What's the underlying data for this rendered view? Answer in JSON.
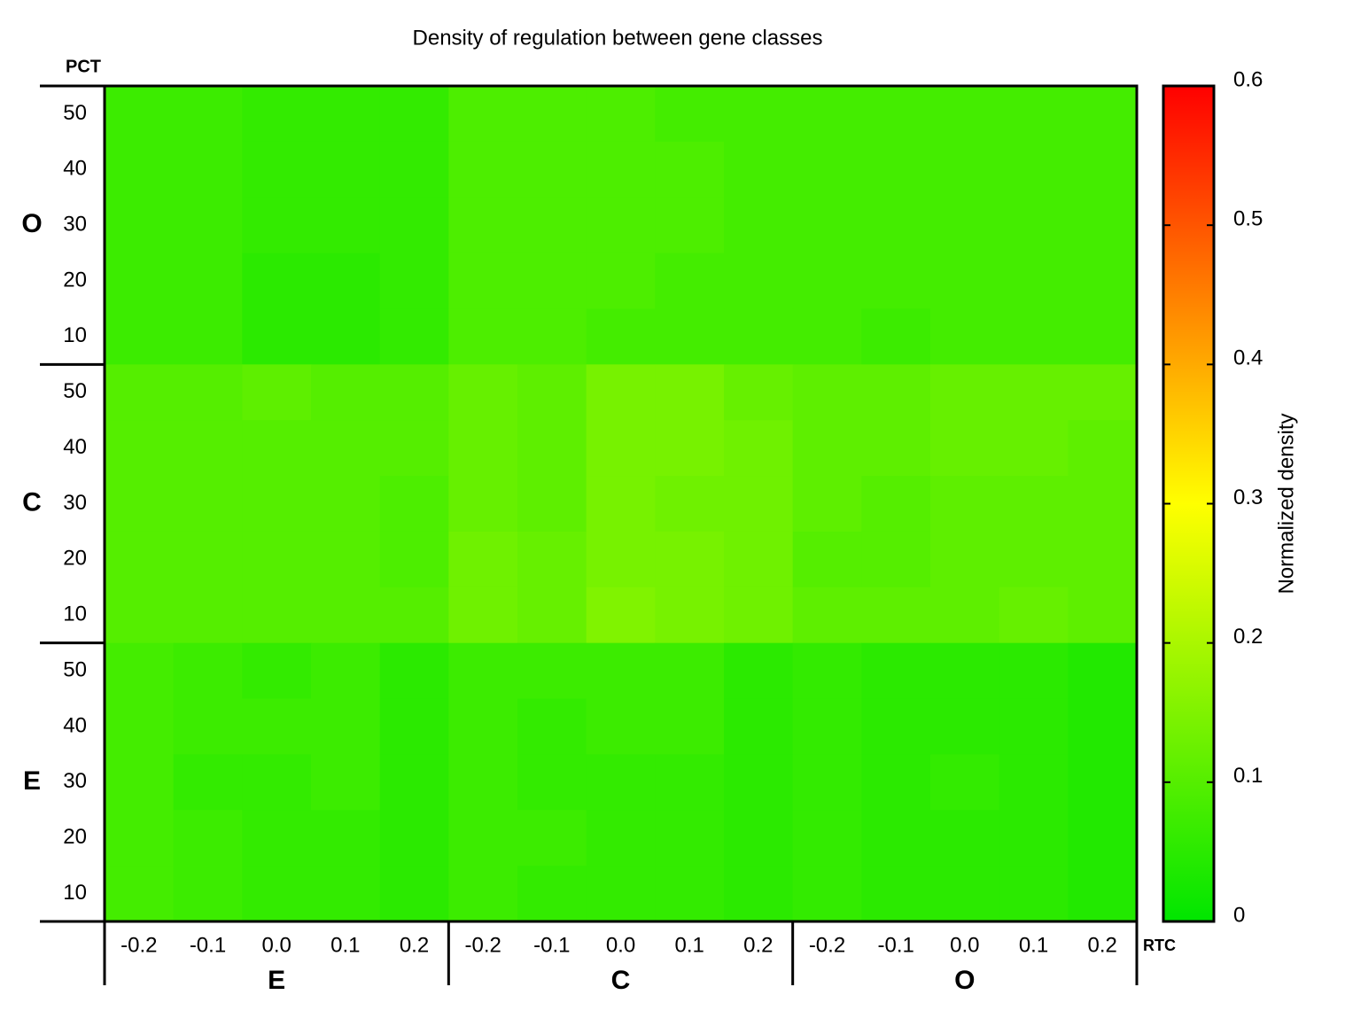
{
  "chart_data": {
    "type": "heatmap",
    "title": "Density of regulation between gene classes",
    "x_label": "RTC",
    "y_label": "PCT",
    "x_categories": [
      "-0.2",
      "-0.1",
      "0.0",
      "0.1",
      "0.2",
      "-0.2",
      "-0.1",
      "0.0",
      "0.1",
      "0.2",
      "-0.2",
      "-0.1",
      "0.0",
      "0.1",
      "0.2"
    ],
    "x_groups": [
      "E",
      "C",
      "O"
    ],
    "y_categories": [
      "50",
      "40",
      "30",
      "20",
      "10",
      "50",
      "40",
      "30",
      "20",
      "10",
      "50",
      "40",
      "30",
      "20",
      "10"
    ],
    "y_groups": [
      "O",
      "C",
      "E"
    ],
    "values": [
      [
        0.07,
        0.07,
        0.06,
        0.06,
        0.06,
        0.09,
        0.09,
        0.09,
        0.08,
        0.08,
        0.08,
        0.08,
        0.08,
        0.08,
        0.08
      ],
      [
        0.07,
        0.07,
        0.06,
        0.06,
        0.06,
        0.09,
        0.09,
        0.09,
        0.09,
        0.08,
        0.08,
        0.08,
        0.08,
        0.08,
        0.08
      ],
      [
        0.07,
        0.07,
        0.06,
        0.06,
        0.06,
        0.09,
        0.09,
        0.09,
        0.09,
        0.08,
        0.08,
        0.08,
        0.08,
        0.08,
        0.08
      ],
      [
        0.07,
        0.07,
        0.05,
        0.05,
        0.06,
        0.09,
        0.09,
        0.09,
        0.08,
        0.08,
        0.08,
        0.08,
        0.08,
        0.08,
        0.08
      ],
      [
        0.07,
        0.07,
        0.05,
        0.05,
        0.06,
        0.09,
        0.09,
        0.08,
        0.08,
        0.08,
        0.08,
        0.07,
        0.08,
        0.08,
        0.08
      ],
      [
        0.1,
        0.1,
        0.11,
        0.1,
        0.1,
        0.12,
        0.11,
        0.14,
        0.14,
        0.12,
        0.11,
        0.11,
        0.12,
        0.12,
        0.12
      ],
      [
        0.1,
        0.1,
        0.1,
        0.1,
        0.1,
        0.12,
        0.11,
        0.14,
        0.14,
        0.13,
        0.11,
        0.11,
        0.12,
        0.12,
        0.11
      ],
      [
        0.1,
        0.1,
        0.1,
        0.1,
        0.09,
        0.12,
        0.11,
        0.14,
        0.13,
        0.13,
        0.11,
        0.1,
        0.11,
        0.11,
        0.11
      ],
      [
        0.1,
        0.1,
        0.1,
        0.1,
        0.09,
        0.13,
        0.12,
        0.14,
        0.14,
        0.13,
        0.1,
        0.1,
        0.11,
        0.11,
        0.11
      ],
      [
        0.1,
        0.1,
        0.1,
        0.1,
        0.1,
        0.13,
        0.12,
        0.15,
        0.14,
        0.13,
        0.11,
        0.11,
        0.11,
        0.12,
        0.11
      ],
      [
        0.08,
        0.07,
        0.06,
        0.07,
        0.05,
        0.07,
        0.07,
        0.07,
        0.07,
        0.05,
        0.06,
        0.05,
        0.05,
        0.05,
        0.04
      ],
      [
        0.08,
        0.07,
        0.07,
        0.07,
        0.05,
        0.07,
        0.06,
        0.07,
        0.07,
        0.05,
        0.06,
        0.05,
        0.05,
        0.05,
        0.04
      ],
      [
        0.08,
        0.06,
        0.06,
        0.07,
        0.05,
        0.07,
        0.06,
        0.06,
        0.06,
        0.05,
        0.06,
        0.05,
        0.06,
        0.05,
        0.04
      ],
      [
        0.08,
        0.07,
        0.06,
        0.06,
        0.05,
        0.07,
        0.07,
        0.06,
        0.06,
        0.05,
        0.06,
        0.05,
        0.05,
        0.05,
        0.04
      ],
      [
        0.08,
        0.07,
        0.06,
        0.06,
        0.05,
        0.07,
        0.06,
        0.06,
        0.06,
        0.05,
        0.06,
        0.05,
        0.05,
        0.05,
        0.04
      ]
    ],
    "colorbar": {
      "label": "Normalized density",
      "lim": [
        0,
        0.6
      ],
      "ticks": [
        0,
        0.1,
        0.2,
        0.3,
        0.4,
        0.5,
        0.6
      ],
      "colors": [
        "#00e600",
        "#ffff00",
        "#ff0000"
      ]
    }
  }
}
